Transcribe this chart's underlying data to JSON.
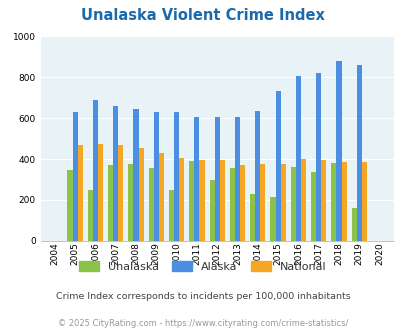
{
  "title": "Unalaska Violent Crime Index",
  "years": [
    "2004",
    "2005",
    "2006",
    "2007",
    "2008",
    "2009",
    "2010",
    "2011",
    "2012",
    "2013",
    "2014",
    "2015",
    "2016",
    "2017",
    "2018",
    "2019",
    "2020"
  ],
  "unalaska": [
    0,
    345,
    250,
    370,
    375,
    355,
    250,
    390,
    300,
    355,
    230,
    215,
    360,
    335,
    380,
    160,
    0
  ],
  "alaska": [
    0,
    630,
    690,
    660,
    645,
    630,
    630,
    605,
    605,
    607,
    635,
    735,
    805,
    820,
    880,
    860,
    0
  ],
  "national": [
    0,
    470,
    475,
    470,
    455,
    430,
    405,
    395,
    395,
    370,
    375,
    375,
    400,
    395,
    385,
    385,
    0
  ],
  "colors": {
    "unalaska": "#8bc34a",
    "alaska": "#4b8fe2",
    "national": "#f5a623"
  },
  "ylim": [
    0,
    1000
  ],
  "yticks": [
    0,
    200,
    400,
    600,
    800,
    1000
  ],
  "bg_color": "#e8f3f8",
  "subtitle": "Crime Index corresponds to incidents per 100,000 inhabitants",
  "footer": "© 2025 CityRating.com - https://www.cityrating.com/crime-statistics/",
  "title_color": "#1a6aad",
  "subtitle_color": "#444444",
  "footer_color": "#999999"
}
